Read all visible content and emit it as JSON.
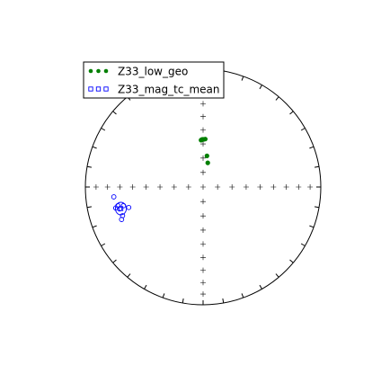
{
  "chart_data": {
    "type": "scatter",
    "projection": "equal-area stereonet (lower hemisphere)",
    "legend": {
      "placement": "top-left"
    },
    "series": [
      {
        "name": "Z33_low_geo",
        "marker": "filled-circle",
        "color": "#007f00",
        "points": [
          {
            "dec": 357.5,
            "inc": 57.3
          },
          {
            "dec": 358.2,
            "inc": 57.0
          },
          {
            "dec": 359.1,
            "inc": 56.8
          },
          {
            "dec": 360.0,
            "inc": 56.7
          },
          {
            "dec": 0.6,
            "inc": 56.8
          },
          {
            "dec": 2.6,
            "inc": 56.5
          },
          {
            "dec": 7.1,
            "inc": 68.3
          },
          {
            "dec": 11.0,
            "inc": 73.0
          }
        ]
      },
      {
        "name": "Z33_mag_tc_mean",
        "marker": "open-circle",
        "color": "#0000ff",
        "points": [
          {
            "dec": 250.4,
            "inc": 28.2
          },
          {
            "dec": 263.7,
            "inc": 24.7
          },
          {
            "dec": 257.6,
            "inc": 26.8
          },
          {
            "dec": 255.3,
            "inc": 27.5
          },
          {
            "dec": 256.8,
            "inc": 31.2
          },
          {
            "dec": 248.3,
            "inc": 26.4
          },
          {
            "dec": 256.5,
            "inc": 24.7
          },
          {
            "dec": 254.6,
            "inc": 34.8
          }
        ],
        "mean": {
          "dec": 255.3,
          "inc": 28.6,
          "a95": 3.8
        }
      }
    ]
  }
}
